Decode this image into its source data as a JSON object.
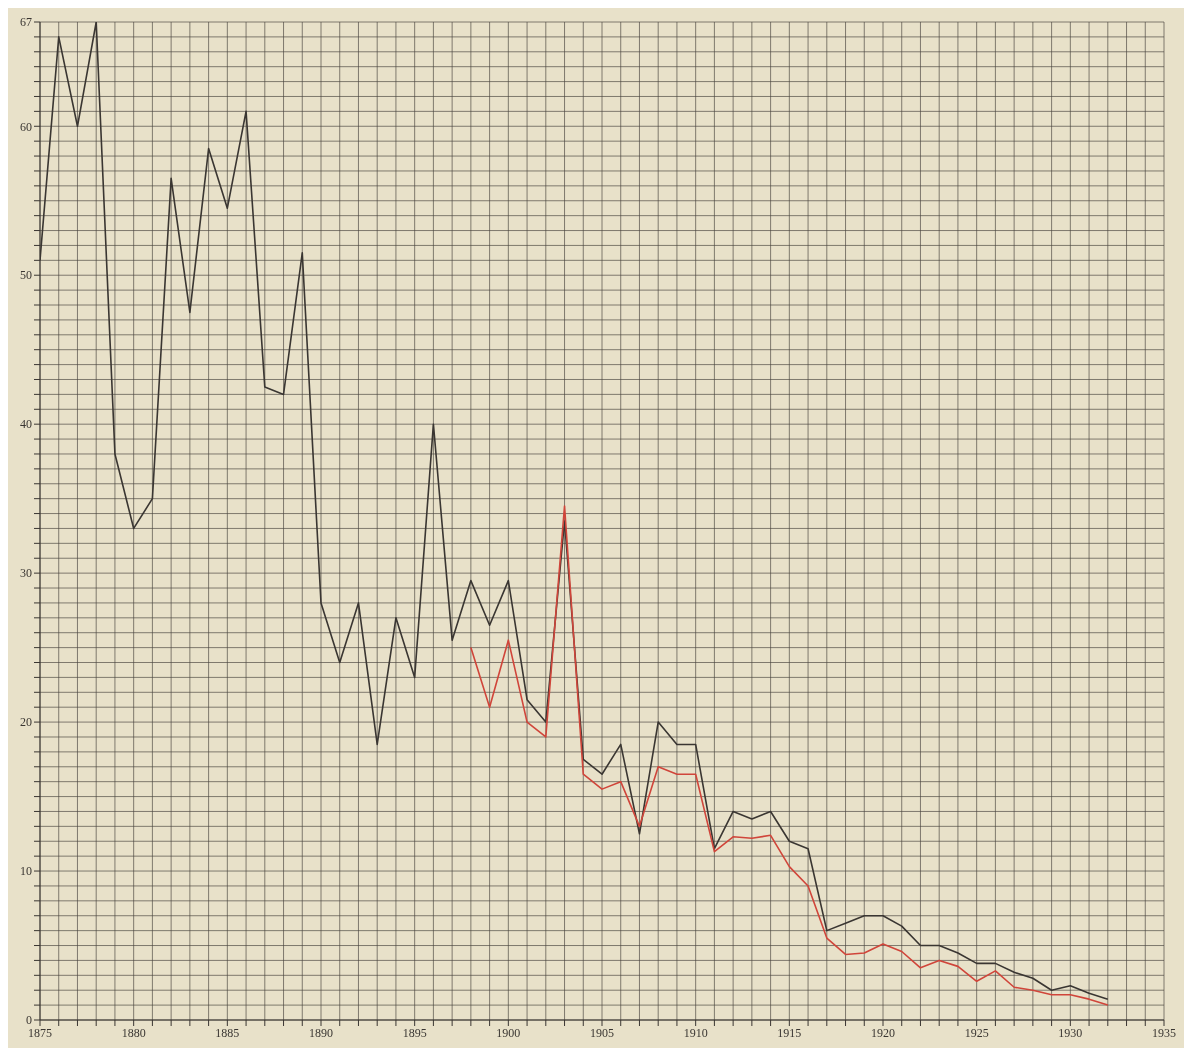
{
  "chart_data": {
    "type": "line",
    "x": [
      1875,
      1876,
      1877,
      1878,
      1879,
      1880,
      1881,
      1882,
      1883,
      1884,
      1885,
      1886,
      1887,
      1888,
      1889,
      1890,
      1891,
      1892,
      1893,
      1894,
      1895,
      1896,
      1897,
      1898,
      1899,
      1900,
      1901,
      1902,
      1903,
      1904,
      1905,
      1906,
      1907,
      1908,
      1909,
      1910,
      1911,
      1912,
      1913,
      1914,
      1915,
      1916,
      1917,
      1918,
      1919,
      1920,
      1921,
      1922,
      1923,
      1924,
      1925,
      1926,
      1927,
      1928,
      1929,
      1930,
      1931,
      1932
    ],
    "series": [
      {
        "color": "#3a3632",
        "values": [
          51,
          66,
          60,
          67,
          38,
          33,
          35,
          56.5,
          47.5,
          58.5,
          54.5,
          61,
          42.5,
          42,
          51.5,
          28,
          24,
          28,
          18.5,
          27,
          23,
          40,
          25.5,
          29.5,
          26.5,
          29.5,
          21.5,
          20,
          33.5,
          17.5,
          16.5,
          18.5,
          12.5,
          20,
          18.5,
          18.5,
          11.5,
          14,
          13.5,
          14,
          12,
          11.5,
          6,
          6.5,
          7,
          7,
          6.3,
          5,
          5,
          4.5,
          3.8,
          3.8,
          3.2,
          2.8,
          2,
          2.3,
          1.8,
          1.4
        ]
      },
      {
        "color": "#d0453a",
        "values": [
          null,
          null,
          null,
          null,
          null,
          null,
          null,
          null,
          null,
          null,
          null,
          null,
          null,
          null,
          null,
          null,
          null,
          null,
          null,
          null,
          null,
          null,
          null,
          25,
          21,
          25.5,
          20,
          19,
          34.5,
          16.5,
          15.5,
          16,
          13,
          17,
          16.5,
          16.5,
          11.3,
          12.3,
          12.2,
          12.4,
          10.3,
          9,
          5.5,
          4.4,
          4.5,
          5.1,
          4.6,
          3.5,
          4,
          3.6,
          2.6,
          3.3,
          2.2,
          2,
          1.7,
          1.7,
          1.4,
          1
        ]
      }
    ],
    "xlim": [
      1875,
      1935
    ],
    "xticks": [
      1875,
      {
        "value": 1876,
        "label": null
      },
      {
        "value": 1877,
        "label": null
      },
      {
        "value": 1878,
        "label": null
      },
      {
        "value": 1879,
        "label": null
      },
      1880,
      {
        "value": 1881,
        "label": null
      },
      {
        "value": 1882,
        "label": null
      },
      {
        "value": 1883,
        "label": null
      },
      {
        "value": 1884,
        "label": null
      },
      1885,
      {
        "value": 1886,
        "label": null
      },
      {
        "value": 1887,
        "label": null
      },
      {
        "value": 1888,
        "label": null
      },
      {
        "value": 1889,
        "label": null
      },
      1890,
      {
        "value": 1891,
        "label": null
      },
      {
        "value": 1892,
        "label": null
      },
      {
        "value": 1893,
        "label": null
      },
      {
        "value": 1894,
        "label": null
      },
      1895,
      {
        "value": 1896,
        "label": null
      },
      {
        "value": 1897,
        "label": null
      },
      {
        "value": 1898,
        "label": null
      },
      {
        "value": 1899,
        "label": null
      },
      1900,
      {
        "value": 1901,
        "label": null
      },
      {
        "value": 1902,
        "label": null
      },
      {
        "value": 1903,
        "label": null
      },
      {
        "value": 1904,
        "label": null
      },
      1905,
      {
        "value": 1906,
        "label": null
      },
      {
        "value": 1907,
        "label": null
      },
      {
        "value": 1908,
        "label": null
      },
      {
        "value": 1909,
        "label": null
      },
      1910,
      {
        "value": 1911,
        "label": null
      },
      {
        "value": 1912,
        "label": null
      },
      {
        "value": 1913,
        "label": null
      },
      {
        "value": 1914,
        "label": null
      },
      1915,
      {
        "value": 1916,
        "label": null
      },
      {
        "value": 1917,
        "label": null
      },
      {
        "value": 1918,
        "label": null
      },
      {
        "value": 1919,
        "label": null
      },
      1920,
      {
        "value": 1921,
        "label": null
      },
      {
        "value": 1922,
        "label": null
      },
      {
        "value": 1923,
        "label": null
      },
      {
        "value": 1924,
        "label": null
      },
      1925,
      {
        "value": 1926,
        "label": null
      },
      {
        "value": 1927,
        "label": null
      },
      {
        "value": 1928,
        "label": null
      },
      {
        "value": 1929,
        "label": null
      },
      1930,
      {
        "value": 1931,
        "label": null
      },
      {
        "value": 1932,
        "label": null
      },
      {
        "value": 1933,
        "label": null
      },
      {
        "value": 1934,
        "label": null
      },
      1935
    ],
    "ylim": [
      0,
      67
    ],
    "yticks": [
      0,
      {
        "value": 1,
        "label": null
      },
      {
        "value": 2,
        "label": null
      },
      {
        "value": 3,
        "label": null
      },
      {
        "value": 4,
        "label": null
      },
      {
        "value": 5,
        "label": null
      },
      {
        "value": 6,
        "label": null
      },
      {
        "value": 7,
        "label": null
      },
      {
        "value": 8,
        "label": null
      },
      {
        "value": 9,
        "label": null
      },
      10,
      {
        "value": 11,
        "label": null
      },
      {
        "value": 12,
        "label": null
      },
      {
        "value": 13,
        "label": null
      },
      {
        "value": 14,
        "label": null
      },
      {
        "value": 15,
        "label": null
      },
      {
        "value": 16,
        "label": null
      },
      {
        "value": 17,
        "label": null
      },
      {
        "value": 18,
        "label": null
      },
      {
        "value": 19,
        "label": null
      },
      20,
      {
        "value": 21,
        "label": null
      },
      {
        "value": 22,
        "label": null
      },
      {
        "value": 23,
        "label": null
      },
      {
        "value": 24,
        "label": null
      },
      {
        "value": 25,
        "label": null
      },
      {
        "value": 26,
        "label": null
      },
      {
        "value": 27,
        "label": null
      },
      {
        "value": 28,
        "label": null
      },
      {
        "value": 29,
        "label": null
      },
      30,
      {
        "value": 31,
        "label": null
      },
      {
        "value": 32,
        "label": null
      },
      {
        "value": 33,
        "label": null
      },
      {
        "value": 34,
        "label": null
      },
      {
        "value": 35,
        "label": null
      },
      {
        "value": 36,
        "label": null
      },
      {
        "value": 37,
        "label": null
      },
      {
        "value": 38,
        "label": null
      },
      {
        "value": 39,
        "label": null
      },
      40,
      {
        "value": 41,
        "label": null
      },
      {
        "value": 42,
        "label": null
      },
      {
        "value": 43,
        "label": null
      },
      {
        "value": 44,
        "label": null
      },
      {
        "value": 45,
        "label": null
      },
      {
        "value": 46,
        "label": null
      },
      {
        "value": 47,
        "label": null
      },
      {
        "value": 48,
        "label": null
      },
      {
        "value": 49,
        "label": null
      },
      50,
      {
        "value": 51,
        "label": null
      },
      {
        "value": 52,
        "label": null
      },
      {
        "value": 53,
        "label": null
      },
      {
        "value": 54,
        "label": null
      },
      {
        "value": 55,
        "label": null
      },
      {
        "value": 56,
        "label": null
      },
      {
        "value": 57,
        "label": null
      },
      {
        "value": 58,
        "label": null
      },
      {
        "value": 59,
        "label": null
      },
      60,
      {
        "value": 61,
        "label": null
      },
      {
        "value": 62,
        "label": null
      },
      {
        "value": 63,
        "label": null
      },
      {
        "value": 64,
        "label": null
      },
      {
        "value": 65,
        "label": null
      },
      {
        "value": 66,
        "label": null
      },
      67
    ],
    "grid": true,
    "marker": "none",
    "line_style": "solid"
  }
}
